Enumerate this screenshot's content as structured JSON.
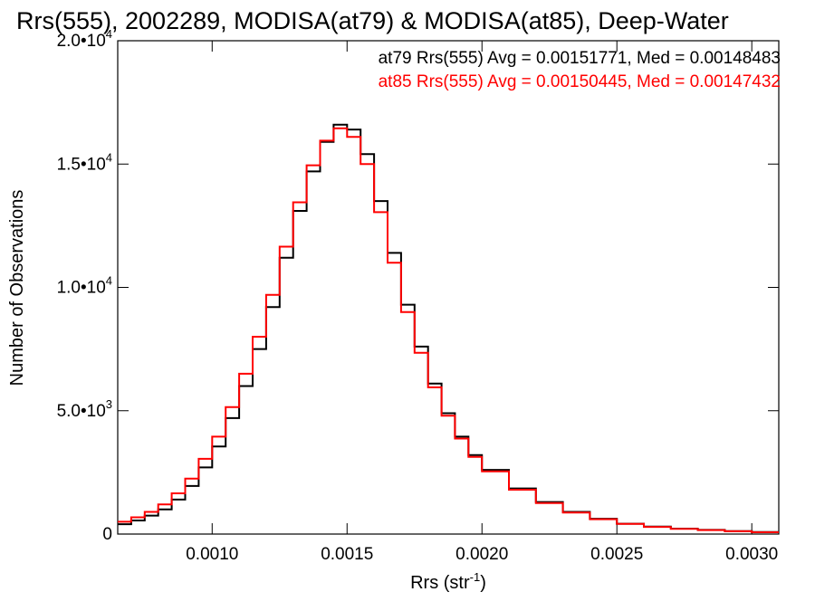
{
  "chart_data": {
    "type": "line",
    "step": true,
    "title": "Rrs(555), 2002289, MODISA(at79) & MODISA(at85), Deep-Water",
    "xlabel": "Rrs (str",
    "xlabel_sup": "-1",
    "xlabel_end": ")",
    "ylabel": "Number of Observations",
    "xlim": [
      0.00065,
      0.0031
    ],
    "ylim": [
      0,
      20000
    ],
    "x_ticks": [
      {
        "value": 0.001,
        "label": "0.0010"
      },
      {
        "value": 0.0015,
        "label": "0.0015"
      },
      {
        "value": 0.002,
        "label": "0.0020"
      },
      {
        "value": 0.0025,
        "label": "0.0025"
      },
      {
        "value": 0.003,
        "label": "0.0030"
      }
    ],
    "y_ticks": [
      {
        "value": 0,
        "label": "0",
        "sup": ""
      },
      {
        "value": 5000,
        "label": "5.0•10",
        "sup": "3"
      },
      {
        "value": 10000,
        "label": "1.0•10",
        "sup": "4"
      },
      {
        "value": 15000,
        "label": "1.5•10",
        "sup": "4"
      },
      {
        "value": 20000,
        "label": "2.0•10",
        "sup": "4"
      }
    ],
    "annotations": [
      {
        "text": "at79 Rrs(555) Avg = 0.00151771, Med = 0.00148483",
        "color": "#000000"
      },
      {
        "text": "at85 Rrs(555) Avg = 0.00150445, Med = 0.00147432",
        "color": "#ff0000"
      }
    ],
    "series": [
      {
        "name": "at79",
        "color": "#000000",
        "x": [
          0.00065,
          0.0007,
          0.00075,
          0.0008,
          0.00085,
          0.0009,
          0.00095,
          0.001,
          0.00105,
          0.0011,
          0.00115,
          0.0012,
          0.00125,
          0.0013,
          0.00135,
          0.0014,
          0.00145,
          0.0015,
          0.00155,
          0.0016,
          0.00165,
          0.0017,
          0.00175,
          0.0018,
          0.00185,
          0.0019,
          0.00195,
          0.002,
          0.0021,
          0.0022,
          0.0023,
          0.0024,
          0.0025,
          0.0026,
          0.0027,
          0.0028,
          0.0029,
          0.003,
          0.0031
        ],
        "y": [
          400,
          550,
          750,
          1000,
          1400,
          1950,
          2700,
          3550,
          4700,
          6000,
          7500,
          9200,
          11200,
          13100,
          14700,
          15900,
          16600,
          16400,
          15400,
          13500,
          11400,
          9300,
          7600,
          6100,
          4900,
          3950,
          3200,
          2600,
          1850,
          1300,
          900,
          620,
          420,
          300,
          220,
          170,
          120,
          80,
          50
        ]
      },
      {
        "name": "at85",
        "color": "#ff0000",
        "x": [
          0.00065,
          0.0007,
          0.00075,
          0.0008,
          0.00085,
          0.0009,
          0.00095,
          0.001,
          0.00105,
          0.0011,
          0.00115,
          0.0012,
          0.00125,
          0.0013,
          0.00135,
          0.0014,
          0.00145,
          0.0015,
          0.00155,
          0.0016,
          0.00165,
          0.0017,
          0.00175,
          0.0018,
          0.00185,
          0.0019,
          0.00195,
          0.002,
          0.0021,
          0.0022,
          0.0023,
          0.0024,
          0.0025,
          0.0026,
          0.0027,
          0.0028,
          0.0029,
          0.003,
          0.0031
        ],
        "y": [
          500,
          680,
          900,
          1200,
          1650,
          2250,
          3050,
          3950,
          5150,
          6500,
          8000,
          9700,
          11650,
          13450,
          14950,
          15950,
          16450,
          16100,
          15000,
          13050,
          11000,
          9000,
          7350,
          5950,
          4800,
          3870,
          3130,
          2540,
          1800,
          1260,
          870,
          600,
          410,
          290,
          210,
          160,
          115,
          75,
          45
        ]
      }
    ],
    "grid": false,
    "legend": "none"
  }
}
